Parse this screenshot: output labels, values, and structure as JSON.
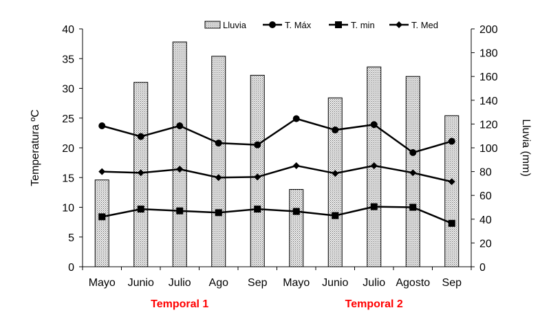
{
  "chart_data": {
    "type": "bar",
    "categories": [
      "Mayo",
      "Junio",
      "Julio",
      "Ago",
      "Sep",
      "Mayo",
      "Junio",
      "Julio",
      "Agosto",
      "Sep"
    ],
    "groups": [
      {
        "label": "Temporal 1",
        "categories": [
          "Mayo",
          "Junio",
          "Julio",
          "Ago",
          "Sep"
        ]
      },
      {
        "label": "Temporal 2",
        "categories": [
          "Mayo",
          "Junio",
          "Julio",
          "Agosto",
          "Sep"
        ]
      }
    ],
    "group_label_color": "#ff0000",
    "y_left": {
      "label": "Temperatura ºC",
      "lim": [
        0,
        40
      ],
      "ticks": [
        0,
        5,
        10,
        15,
        20,
        25,
        30,
        35,
        40
      ]
    },
    "y_right": {
      "label": "Lluvia (mm)",
      "lim": [
        0,
        200
      ],
      "ticks": [
        0,
        20,
        40,
        60,
        80,
        100,
        120,
        140,
        160,
        180,
        200
      ]
    },
    "series": [
      {
        "name": "Lluvia",
        "type": "bar",
        "axis": "right",
        "color": "#d9d9d9",
        "values": [
          73,
          155,
          189,
          177,
          161,
          65,
          142,
          168,
          160,
          127
        ]
      },
      {
        "name": "T. Máx",
        "type": "line",
        "axis": "left",
        "marker": "circle",
        "color": "#000000",
        "values": [
          23.7,
          21.9,
          23.7,
          20.8,
          20.5,
          24.9,
          23.0,
          23.9,
          19.2,
          21.1
        ]
      },
      {
        "name": "T. min",
        "type": "line",
        "axis": "left",
        "marker": "square",
        "color": "#000000",
        "values": [
          8.4,
          9.7,
          9.4,
          9.1,
          9.7,
          9.3,
          8.6,
          10.1,
          10.0,
          7.3
        ]
      },
      {
        "name": "T. Med",
        "type": "line",
        "axis": "left",
        "marker": "diamond",
        "color": "#000000",
        "values": [
          16.0,
          15.8,
          16.4,
          15.0,
          15.1,
          17.0,
          15.7,
          17.0,
          15.8,
          14.3
        ]
      }
    ],
    "legend_position": "top-right",
    "grid": false
  }
}
